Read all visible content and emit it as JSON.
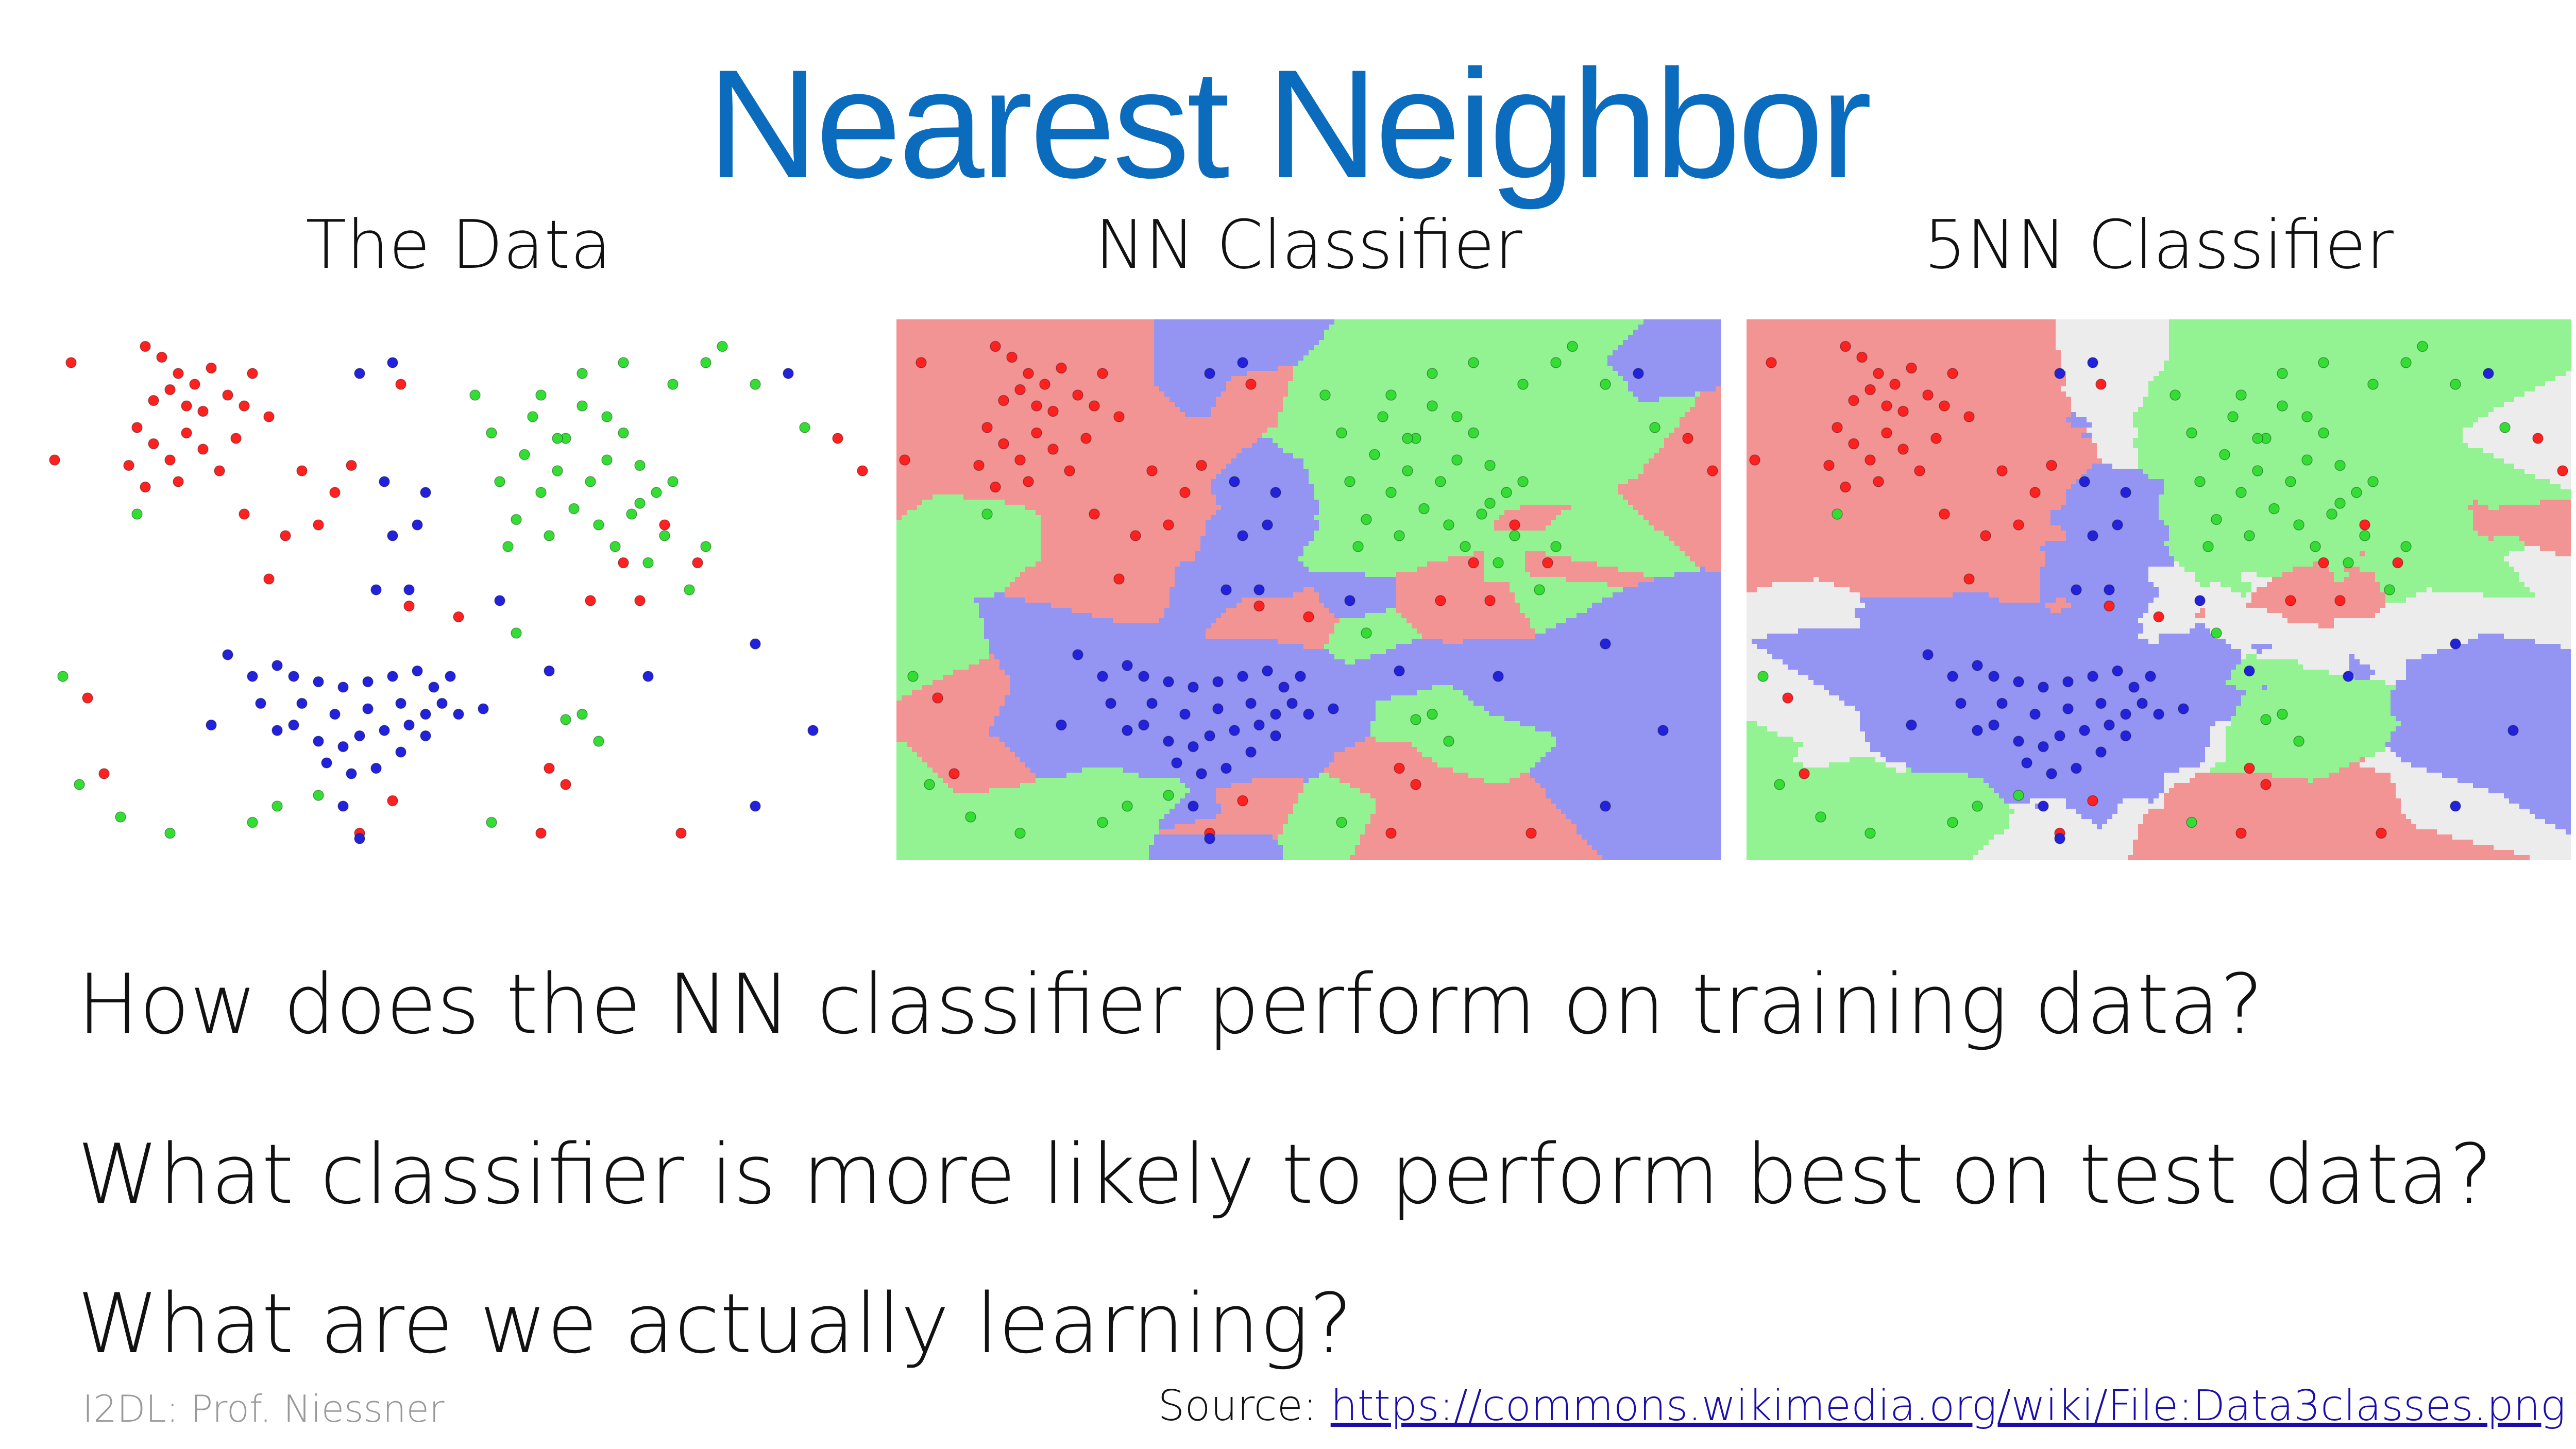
{
  "slide": {
    "title": "Nearest Neighbor",
    "title_color": "#0b6bbd",
    "panels": [
      {
        "id": "data",
        "label": "The Data",
        "background": "white"
      },
      {
        "id": "nn",
        "label": "NN Classifier",
        "background": "decision-regions"
      },
      {
        "id": "knn",
        "label": "5NN Classifier",
        "background": "decision-regions-with-ties"
      }
    ],
    "questions": [
      "How does the NN classifier perform on training data?",
      "What classifier is more likely to perform best on test data?",
      "What are we actually learning?"
    ],
    "footer": {
      "left": "I2DL: Prof. Niessner",
      "source_label": "Source: ",
      "source_link": "https://commons.wikimedia.org/wiki/File:Data3classes.png"
    }
  },
  "colors": {
    "red_point": "#ff2020",
    "green_point": "#33dd33",
    "blue_point": "#2222dd",
    "red_region": "#f29494",
    "green_region": "#93f393",
    "blue_region": "#9494f2",
    "tie_region": "#ececec"
  },
  "chart_data": {
    "type": "scatter",
    "xlim": [
      0,
      1
    ],
    "ylim": [
      0,
      1
    ],
    "series": [
      {
        "class": "red",
        "points": [
          [
            0.12,
            0.95
          ],
          [
            0.14,
            0.93
          ],
          [
            0.16,
            0.9
          ],
          [
            0.18,
            0.88
          ],
          [
            0.2,
            0.91
          ],
          [
            0.15,
            0.87
          ],
          [
            0.13,
            0.85
          ],
          [
            0.17,
            0.84
          ],
          [
            0.19,
            0.83
          ],
          [
            0.22,
            0.86
          ],
          [
            0.24,
            0.84
          ],
          [
            0.11,
            0.8
          ],
          [
            0.13,
            0.77
          ],
          [
            0.15,
            0.74
          ],
          [
            0.17,
            0.79
          ],
          [
            0.19,
            0.76
          ],
          [
            0.21,
            0.72
          ],
          [
            0.23,
            0.78
          ],
          [
            0.1,
            0.73
          ],
          [
            0.12,
            0.69
          ],
          [
            0.16,
            0.7
          ],
          [
            0.25,
            0.9
          ],
          [
            0.03,
            0.92
          ],
          [
            0.01,
            0.74
          ],
          [
            0.27,
            0.82
          ],
          [
            0.31,
            0.72
          ],
          [
            0.35,
            0.68
          ],
          [
            0.37,
            0.73
          ],
          [
            0.43,
            0.88
          ],
          [
            0.29,
            0.6
          ],
          [
            0.33,
            0.62
          ],
          [
            0.24,
            0.64
          ],
          [
            0.27,
            0.52
          ],
          [
            0.44,
            0.47
          ],
          [
            0.5,
            0.45
          ],
          [
            0.05,
            0.3
          ],
          [
            0.07,
            0.16
          ],
          [
            0.38,
            0.05
          ],
          [
            0.42,
            0.11
          ],
          [
            0.61,
            0.17
          ],
          [
            0.63,
            0.14
          ],
          [
            0.6,
            0.05
          ],
          [
            0.77,
            0.05
          ],
          [
            0.79,
            0.55
          ],
          [
            0.96,
            0.78
          ],
          [
            0.99,
            0.72
          ],
          [
            0.66,
            0.48
          ],
          [
            0.7,
            0.55
          ],
          [
            0.75,
            0.62
          ],
          [
            0.72,
            0.48
          ]
        ]
      },
      {
        "class": "green",
        "points": [
          [
            0.55,
            0.7
          ],
          [
            0.58,
            0.75
          ],
          [
            0.62,
            0.72
          ],
          [
            0.6,
            0.68
          ],
          [
            0.64,
            0.65
          ],
          [
            0.66,
            0.7
          ],
          [
            0.68,
            0.74
          ],
          [
            0.63,
            0.78
          ],
          [
            0.59,
            0.82
          ],
          [
            0.65,
            0.84
          ],
          [
            0.7,
            0.79
          ],
          [
            0.72,
            0.73
          ],
          [
            0.74,
            0.68
          ],
          [
            0.71,
            0.64
          ],
          [
            0.67,
            0.62
          ],
          [
            0.61,
            0.6
          ],
          [
            0.57,
            0.63
          ],
          [
            0.56,
            0.58
          ],
          [
            0.69,
            0.58
          ],
          [
            0.75,
            0.6
          ],
          [
            0.73,
            0.55
          ],
          [
            0.78,
            0.5
          ],
          [
            0.8,
            0.58
          ],
          [
            0.76,
            0.88
          ],
          [
            0.8,
            0.92
          ],
          [
            0.82,
            0.95
          ],
          [
            0.52,
            0.86
          ],
          [
            0.86,
            0.88
          ],
          [
            0.92,
            0.8
          ],
          [
            0.65,
            0.9
          ],
          [
            0.54,
            0.79
          ],
          [
            0.6,
            0.86
          ],
          [
            0.11,
            0.64
          ],
          [
            0.02,
            0.34
          ],
          [
            0.04,
            0.14
          ],
          [
            0.09,
            0.08
          ],
          [
            0.15,
            0.05
          ],
          [
            0.25,
            0.07
          ],
          [
            0.28,
            0.1
          ],
          [
            0.33,
            0.12
          ],
          [
            0.57,
            0.42
          ],
          [
            0.63,
            0.26
          ],
          [
            0.65,
            0.27
          ],
          [
            0.67,
            0.22
          ],
          [
            0.54,
            0.07
          ],
          [
            0.76,
            0.7
          ],
          [
            0.7,
            0.92
          ],
          [
            0.72,
            0.66
          ],
          [
            0.62,
            0.78
          ],
          [
            0.68,
            0.82
          ]
        ]
      },
      {
        "class": "blue",
        "points": [
          [
            0.38,
            0.9
          ],
          [
            0.42,
            0.92
          ],
          [
            0.41,
            0.7
          ],
          [
            0.46,
            0.68
          ],
          [
            0.45,
            0.62
          ],
          [
            0.42,
            0.6
          ],
          [
            0.44,
            0.5
          ],
          [
            0.4,
            0.5
          ],
          [
            0.22,
            0.38
          ],
          [
            0.28,
            0.36
          ],
          [
            0.3,
            0.34
          ],
          [
            0.33,
            0.33
          ],
          [
            0.36,
            0.32
          ],
          [
            0.39,
            0.33
          ],
          [
            0.42,
            0.34
          ],
          [
            0.45,
            0.35
          ],
          [
            0.47,
            0.32
          ],
          [
            0.49,
            0.34
          ],
          [
            0.48,
            0.29
          ],
          [
            0.46,
            0.27
          ],
          [
            0.44,
            0.25
          ],
          [
            0.41,
            0.24
          ],
          [
            0.38,
            0.23
          ],
          [
            0.36,
            0.21
          ],
          [
            0.33,
            0.22
          ],
          [
            0.3,
            0.25
          ],
          [
            0.31,
            0.29
          ],
          [
            0.35,
            0.27
          ],
          [
            0.39,
            0.28
          ],
          [
            0.43,
            0.29
          ],
          [
            0.26,
            0.29
          ],
          [
            0.28,
            0.24
          ],
          [
            0.34,
            0.18
          ],
          [
            0.37,
            0.16
          ],
          [
            0.4,
            0.17
          ],
          [
            0.43,
            0.2
          ],
          [
            0.46,
            0.23
          ],
          [
            0.5,
            0.27
          ],
          [
            0.53,
            0.28
          ],
          [
            0.36,
            0.1
          ],
          [
            0.38,
            0.04
          ],
          [
            0.55,
            0.48
          ],
          [
            0.61,
            0.35
          ],
          [
            0.73,
            0.34
          ],
          [
            0.86,
            0.4
          ],
          [
            0.93,
            0.24
          ],
          [
            0.86,
            0.1
          ],
          [
            0.9,
            0.9
          ],
          [
            0.2,
            0.25
          ],
          [
            0.25,
            0.34
          ]
        ]
      }
    ]
  }
}
